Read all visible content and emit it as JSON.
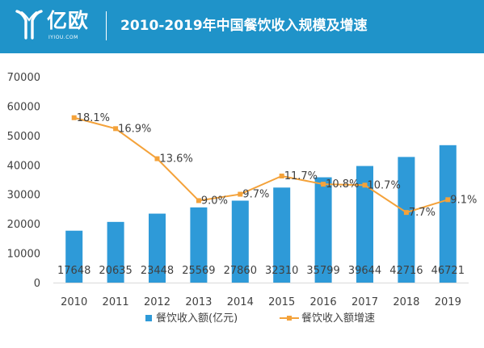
{
  "header": {
    "brand_name": "亿欧",
    "brand_sub": "IYIOU.COM",
    "title": "2010-2019年中国餐饮收入规模及增速"
  },
  "colors": {
    "header": "#1f93c9",
    "bar": "#2e9ad8",
    "line": "#f4a23a",
    "text": "#404040",
    "axis": "#d9d9d9"
  },
  "chart_data": {
    "type": "bar",
    "categories": [
      "2010",
      "2011",
      "2012",
      "2013",
      "2014",
      "2015",
      "2016",
      "2017",
      "2018",
      "2019"
    ],
    "series": [
      {
        "name": "餐饮收入额(亿元)",
        "type": "bar",
        "values": [
          17648,
          20635,
          23448,
          25569,
          27860,
          32310,
          35799,
          39644,
          42716,
          46721
        ],
        "labels": [
          "17648",
          "20635",
          "23448",
          "25569",
          "27860",
          "32310",
          "35799",
          "39644",
          "42716",
          "46721"
        ]
      },
      {
        "name": "餐饮收入额增速",
        "type": "line",
        "values": [
          18.1,
          16.9,
          13.6,
          9.0,
          9.7,
          11.7,
          10.8,
          10.7,
          7.7,
          9.1
        ],
        "labels": [
          "18.1%",
          "16.9%",
          "13.6%",
          "9.0%",
          "9.7%",
          "11.7%",
          "10.8%",
          "10.7%",
          "7.7%",
          "9.1%"
        ]
      }
    ],
    "ylim": [
      0,
      70000
    ],
    "yticks": [
      "0",
      "10000",
      "20000",
      "30000",
      "40000",
      "50000",
      "60000",
      "70000"
    ],
    "y2lim": [
      0,
      22.6
    ],
    "legend": "bottom",
    "grid": false
  }
}
